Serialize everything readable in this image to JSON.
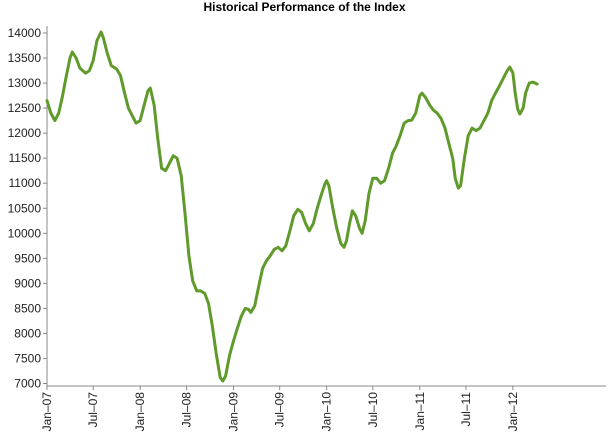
{
  "chart_data": {
    "type": "line",
    "title": "Historical Performance of the Index",
    "xlabel": "",
    "ylabel": "",
    "x_start": "2007-01-01",
    "x_end": "2012-12-31",
    "ylim": [
      6950,
      14100
    ],
    "yticks": [
      7000,
      7500,
      8000,
      8500,
      9000,
      9500,
      10000,
      10500,
      11000,
      11500,
      12000,
      12500,
      13000,
      13500,
      14000
    ],
    "xticks": [
      {
        "date": "2007-01-01",
        "label": "Jan–07"
      },
      {
        "date": "2007-07-01",
        "label": "Jul–07"
      },
      {
        "date": "2008-01-01",
        "label": "Jan–08"
      },
      {
        "date": "2008-07-01",
        "label": "Jul–08"
      },
      {
        "date": "2009-01-01",
        "label": "Jan–09"
      },
      {
        "date": "2009-07-01",
        "label": "Jul–09"
      },
      {
        "date": "2010-01-01",
        "label": "Jan–10"
      },
      {
        "date": "2010-07-01",
        "label": "Jul–10"
      },
      {
        "date": "2011-01-01",
        "label": "Jan–11"
      },
      {
        "date": "2011-07-01",
        "label": "Jul–11"
      },
      {
        "date": "2012-01-01",
        "label": "Jan–12"
      }
    ],
    "grid": false,
    "line_color": "#5f9a2b",
    "series": [
      {
        "name": "",
        "points": [
          [
            "2007-01-01",
            12650
          ],
          [
            "2007-01-16",
            12400
          ],
          [
            "2007-02-01",
            12250
          ],
          [
            "2007-02-16",
            12400
          ],
          [
            "2007-03-01",
            12700
          ],
          [
            "2007-03-16",
            13100
          ],
          [
            "2007-04-01",
            13500
          ],
          [
            "2007-04-10",
            13620
          ],
          [
            "2007-04-25",
            13500
          ],
          [
            "2007-05-10",
            13300
          ],
          [
            "2007-06-01",
            13200
          ],
          [
            "2007-06-16",
            13250
          ],
          [
            "2007-07-01",
            13450
          ],
          [
            "2007-07-16",
            13850
          ],
          [
            "2007-08-01",
            14020
          ],
          [
            "2007-08-10",
            13900
          ],
          [
            "2007-08-25",
            13600
          ],
          [
            "2007-09-10",
            13350
          ],
          [
            "2007-10-01",
            13280
          ],
          [
            "2007-10-16",
            13150
          ],
          [
            "2007-11-01",
            12800
          ],
          [
            "2007-11-16",
            12500
          ],
          [
            "2007-12-01",
            12350
          ],
          [
            "2007-12-16",
            12200
          ],
          [
            "2008-01-01",
            12250
          ],
          [
            "2008-01-16",
            12550
          ],
          [
            "2008-02-01",
            12850
          ],
          [
            "2008-02-10",
            12900
          ],
          [
            "2008-02-25",
            12550
          ],
          [
            "2008-03-10",
            11900
          ],
          [
            "2008-03-25",
            11300
          ],
          [
            "2008-04-10",
            11250
          ],
          [
            "2008-04-25",
            11400
          ],
          [
            "2008-05-10",
            11550
          ],
          [
            "2008-05-25",
            11500
          ],
          [
            "2008-06-10",
            11150
          ],
          [
            "2008-06-25",
            10400
          ],
          [
            "2008-07-10",
            9550
          ],
          [
            "2008-07-25",
            9050
          ],
          [
            "2008-08-10",
            8850
          ],
          [
            "2008-08-25",
            8850
          ],
          [
            "2008-09-10",
            8800
          ],
          [
            "2008-09-25",
            8600
          ],
          [
            "2008-10-10",
            8150
          ],
          [
            "2008-10-25",
            7600
          ],
          [
            "2008-11-10",
            7120
          ],
          [
            "2008-11-20",
            7050
          ],
          [
            "2008-12-01",
            7150
          ],
          [
            "2008-12-16",
            7550
          ],
          [
            "2009-01-01",
            7850
          ],
          [
            "2009-01-16",
            8100
          ],
          [
            "2009-02-01",
            8350
          ],
          [
            "2009-02-16",
            8500
          ],
          [
            "2009-03-01",
            8480
          ],
          [
            "2009-03-10",
            8420
          ],
          [
            "2009-03-25",
            8550
          ],
          [
            "2009-04-10",
            8950
          ],
          [
            "2009-04-25",
            9300
          ],
          [
            "2009-05-10",
            9450
          ],
          [
            "2009-05-25",
            9550
          ],
          [
            "2009-06-10",
            9680
          ],
          [
            "2009-06-25",
            9720
          ],
          [
            "2009-07-10",
            9650
          ],
          [
            "2009-07-25",
            9750
          ],
          [
            "2009-08-10",
            10050
          ],
          [
            "2009-08-25",
            10350
          ],
          [
            "2009-09-10",
            10480
          ],
          [
            "2009-09-25",
            10420
          ],
          [
            "2009-10-10",
            10200
          ],
          [
            "2009-10-25",
            10050
          ],
          [
            "2009-11-10",
            10200
          ],
          [
            "2009-11-25",
            10500
          ],
          [
            "2009-12-10",
            10750
          ],
          [
            "2009-12-25",
            10980
          ],
          [
            "2010-01-01",
            11050
          ],
          [
            "2010-01-10",
            10950
          ],
          [
            "2010-01-25",
            10500
          ],
          [
            "2010-02-10",
            10100
          ],
          [
            "2010-02-25",
            9800
          ],
          [
            "2010-03-10",
            9720
          ],
          [
            "2010-03-20",
            9850
          ],
          [
            "2010-04-01",
            10200
          ],
          [
            "2010-04-12",
            10450
          ],
          [
            "2010-04-25",
            10350
          ],
          [
            "2010-05-10",
            10100
          ],
          [
            "2010-05-20",
            10000
          ],
          [
            "2010-06-01",
            10250
          ],
          [
            "2010-06-16",
            10800
          ],
          [
            "2010-07-01",
            11100
          ],
          [
            "2010-07-16",
            11100
          ],
          [
            "2010-08-01",
            11000
          ],
          [
            "2010-08-16",
            11050
          ],
          [
            "2010-09-01",
            11300
          ],
          [
            "2010-09-16",
            11600
          ],
          [
            "2010-10-01",
            11750
          ],
          [
            "2010-10-16",
            11950
          ],
          [
            "2010-11-01",
            12200
          ],
          [
            "2010-11-16",
            12250
          ],
          [
            "2010-12-01",
            12260
          ],
          [
            "2010-12-16",
            12400
          ],
          [
            "2011-01-01",
            12750
          ],
          [
            "2011-01-10",
            12800
          ],
          [
            "2011-01-25",
            12700
          ],
          [
            "2011-02-10",
            12550
          ],
          [
            "2011-02-25",
            12450
          ],
          [
            "2011-03-10",
            12400
          ],
          [
            "2011-03-25",
            12300
          ],
          [
            "2011-04-10",
            12100
          ],
          [
            "2011-04-25",
            11800
          ],
          [
            "2011-05-10",
            11500
          ],
          [
            "2011-05-20",
            11100
          ],
          [
            "2011-06-01",
            10900
          ],
          [
            "2011-06-10",
            10950
          ],
          [
            "2011-06-25",
            11500
          ],
          [
            "2011-07-10",
            11950
          ],
          [
            "2011-07-25",
            12100
          ],
          [
            "2011-08-10",
            12050
          ],
          [
            "2011-08-25",
            12100
          ],
          [
            "2011-09-10",
            12250
          ],
          [
            "2011-09-25",
            12400
          ],
          [
            "2011-10-10",
            12650
          ],
          [
            "2011-10-25",
            12800
          ],
          [
            "2011-11-10",
            12950
          ],
          [
            "2011-11-25",
            13100
          ],
          [
            "2011-12-10",
            13250
          ],
          [
            "2011-12-20",
            13320
          ],
          [
            "2012-01-01",
            13200
          ],
          [
            "2012-01-10",
            12800
          ],
          [
            "2012-01-20",
            12480
          ],
          [
            "2012-01-28",
            12380
          ],
          [
            "2012-02-10",
            12500
          ],
          [
            "2012-02-20",
            12800
          ],
          [
            "2012-03-05",
            13000
          ],
          [
            "2012-03-20",
            13020
          ],
          [
            "2012-04-05",
            12980
          ]
        ]
      }
    ]
  }
}
